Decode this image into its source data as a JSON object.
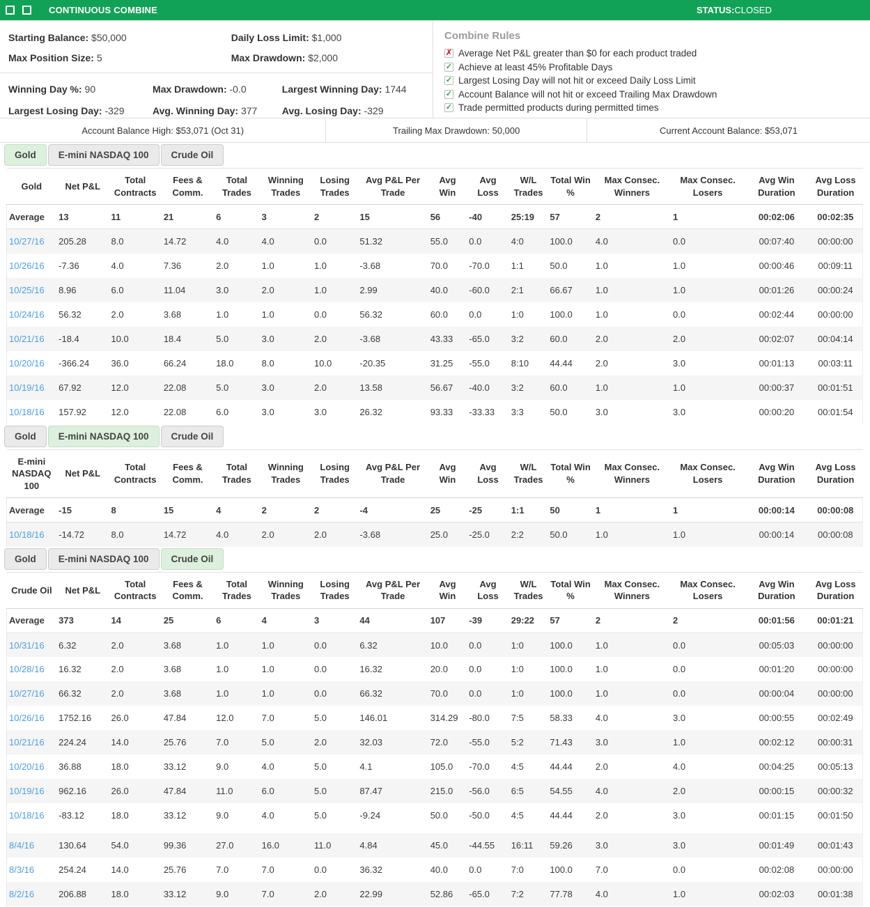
{
  "header": {
    "title": "CONTINUOUS COMBINE",
    "status_label": "STATUS:",
    "status_value": "CLOSED"
  },
  "colors": {
    "brand_green": "#12A257",
    "active_tab_green": "#ddf0dd",
    "date_link_blue": "#4a9fe6",
    "rule_pass_green": "#2f9e44",
    "rule_fail_red": "#d22f2f",
    "row_stripe": "#f5f5f5"
  },
  "stats": {
    "top": [
      {
        "label": "Starting Balance:",
        "value": "$50,000"
      },
      {
        "label": "Daily Loss Limit:",
        "value": "$1,000"
      },
      {
        "label": "Max Position Size:",
        "value": "5"
      },
      {
        "label": "Max Drawdown:",
        "value": "$2,000"
      }
    ],
    "bottom": [
      {
        "label": "Winning Day %:",
        "value": "90"
      },
      {
        "label": "Max Drawdown:",
        "value": "-0.0"
      },
      {
        "label": "Largest Winning Day:",
        "value": "1744"
      },
      {
        "label": "Largest Losing Day:",
        "value": "-329"
      },
      {
        "label": "Avg. Winning Day:",
        "value": "377"
      },
      {
        "label": "Avg. Losing Day:",
        "value": "-329"
      }
    ]
  },
  "rules": {
    "title": "Combine Rules",
    "items": [
      {
        "status": "fail",
        "text": "Average Net P&L greater than $0 for each product traded"
      },
      {
        "status": "pass",
        "text": "Achieve at least 45% Profitable Days"
      },
      {
        "status": "pass",
        "text": "Largest Losing Day will not hit or exceed Daily Loss Limit"
      },
      {
        "status": "pass",
        "text": "Account Balance will not hit or exceed Trailing Max Drawdown"
      },
      {
        "status": "pass",
        "text": "Trade permitted products during permitted times"
      }
    ]
  },
  "summary": [
    "Account Balance High: $53,071 (Oct 31)",
    "Trailing Max Drawdown: 50,000",
    "Current Account Balance: $53,071"
  ],
  "tabs": [
    "Gold",
    "E-mini NASDAQ 100",
    "Crude Oil"
  ],
  "columns": [
    "Net P&L",
    "Total Contracts",
    "Fees & Comm.",
    "Total Trades",
    "Winning Trades",
    "Losing Trades",
    "Avg P&L Per Trade",
    "Avg Win",
    "Avg Loss",
    "W/L Trades",
    "Total Win %",
    "Max Consec. Winners",
    "Max Consec. Losers",
    "Avg Win Duration",
    "Avg Loss Duration"
  ],
  "average_label": "Average",
  "tables": [
    {
      "first_col": "Gold",
      "active_tab": 0,
      "average": [
        "13",
        "11",
        "21",
        "6",
        "3",
        "2",
        "15",
        "56",
        "-40",
        "25:19",
        "57",
        "2",
        "1",
        "00:02:06",
        "00:02:35"
      ],
      "rows": [
        {
          "date": "10/27/16",
          "cells": [
            "205.28",
            "8.0",
            "14.72",
            "4.0",
            "4.0",
            "0.0",
            "51.32",
            "55.0",
            "0.0",
            "4:0",
            "100.0",
            "4.0",
            "0.0",
            "00:07:40",
            "00:00:00"
          ]
        },
        {
          "date": "10/26/16",
          "cells": [
            "-7.36",
            "4.0",
            "7.36",
            "2.0",
            "1.0",
            "1.0",
            "-3.68",
            "70.0",
            "-70.0",
            "1:1",
            "50.0",
            "1.0",
            "1.0",
            "00:00:46",
            "00:09:11"
          ]
        },
        {
          "date": "10/25/16",
          "cells": [
            "8.96",
            "6.0",
            "11.04",
            "3.0",
            "2.0",
            "1.0",
            "2.99",
            "40.0",
            "-60.0",
            "2:1",
            "66.67",
            "1.0",
            "1.0",
            "00:01:26",
            "00:00:24"
          ]
        },
        {
          "date": "10/24/16",
          "cells": [
            "56.32",
            "2.0",
            "3.68",
            "1.0",
            "1.0",
            "0.0",
            "56.32",
            "60.0",
            "0.0",
            "1:0",
            "100.0",
            "1.0",
            "0.0",
            "00:02:44",
            "00:00:00"
          ]
        },
        {
          "date": "10/21/16",
          "cells": [
            "-18.4",
            "10.0",
            "18.4",
            "5.0",
            "3.0",
            "2.0",
            "-3.68",
            "43.33",
            "-65.0",
            "3:2",
            "60.0",
            "2.0",
            "2.0",
            "00:02:07",
            "00:04:14"
          ]
        },
        {
          "date": "10/20/16",
          "cells": [
            "-366.24",
            "36.0",
            "66.24",
            "18.0",
            "8.0",
            "10.0",
            "-20.35",
            "31.25",
            "-55.0",
            "8:10",
            "44.44",
            "2.0",
            "3.0",
            "00:01:13",
            "00:03:11"
          ]
        },
        {
          "date": "10/19/16",
          "cells": [
            "67.92",
            "12.0",
            "22.08",
            "5.0",
            "3.0",
            "2.0",
            "13.58",
            "56.67",
            "-40.0",
            "3:2",
            "60.0",
            "1.0",
            "1.0",
            "00:00:37",
            "00:01:51"
          ]
        },
        {
          "date": "10/18/16",
          "cells": [
            "157.92",
            "12.0",
            "22.08",
            "6.0",
            "3.0",
            "3.0",
            "26.32",
            "93.33",
            "-33.33",
            "3:3",
            "50.0",
            "3.0",
            "3.0",
            "00:00:20",
            "00:01:54"
          ]
        }
      ]
    },
    {
      "first_col": "E-mini NASDAQ 100",
      "active_tab": 1,
      "average": [
        "-15",
        "8",
        "15",
        "4",
        "2",
        "2",
        "-4",
        "25",
        "-25",
        "1:1",
        "50",
        "1",
        "1",
        "00:00:14",
        "00:00:08"
      ],
      "rows": [
        {
          "date": "10/18/16",
          "cells": [
            "-14.72",
            "8.0",
            "14.72",
            "4.0",
            "2.0",
            "2.0",
            "-3.68",
            "25.0",
            "-25.0",
            "2:2",
            "50.0",
            "1.0",
            "1.0",
            "00:00:14",
            "00:00:08"
          ]
        }
      ]
    },
    {
      "first_col": "Crude Oil",
      "active_tab": 2,
      "average": [
        "373",
        "14",
        "25",
        "6",
        "4",
        "3",
        "44",
        "107",
        "-39",
        "29:22",
        "57",
        "2",
        "2",
        "00:01:56",
        "00:01:21"
      ],
      "rows": [
        {
          "date": "10/31/16",
          "cells": [
            "6.32",
            "2.0",
            "3.68",
            "1.0",
            "1.0",
            "0.0",
            "6.32",
            "10.0",
            "0.0",
            "1:0",
            "100.0",
            "1.0",
            "0.0",
            "00:05:03",
            "00:00:00"
          ]
        },
        {
          "date": "10/28/16",
          "cells": [
            "16.32",
            "2.0",
            "3.68",
            "1.0",
            "1.0",
            "0.0",
            "16.32",
            "20.0",
            "0.0",
            "1:0",
            "100.0",
            "1.0",
            "0.0",
            "00:01:20",
            "00:00:00"
          ]
        },
        {
          "date": "10/27/16",
          "cells": [
            "66.32",
            "2.0",
            "3.68",
            "1.0",
            "1.0",
            "0.0",
            "66.32",
            "70.0",
            "0.0",
            "1:0",
            "100.0",
            "1.0",
            "0.0",
            "00:00:04",
            "00:00:00"
          ]
        },
        {
          "date": "10/26/16",
          "cells": [
            "1752.16",
            "26.0",
            "47.84",
            "12.0",
            "7.0",
            "5.0",
            "146.01",
            "314.29",
            "-80.0",
            "7:5",
            "58.33",
            "4.0",
            "3.0",
            "00:00:55",
            "00:02:49"
          ]
        },
        {
          "date": "10/21/16",
          "cells": [
            "224.24",
            "14.0",
            "25.76",
            "7.0",
            "5.0",
            "2.0",
            "32.03",
            "72.0",
            "-55.0",
            "5:2",
            "71.43",
            "3.0",
            "1.0",
            "00:02:12",
            "00:00:31"
          ]
        },
        {
          "date": "10/20/16",
          "cells": [
            "36.88",
            "18.0",
            "33.12",
            "9.0",
            "4.0",
            "5.0",
            "4.1",
            "105.0",
            "-70.0",
            "4:5",
            "44.44",
            "2.0",
            "4.0",
            "00:04:25",
            "00:05:13"
          ]
        },
        {
          "date": "10/19/16",
          "cells": [
            "962.16",
            "26.0",
            "47.84",
            "11.0",
            "6.0",
            "5.0",
            "87.47",
            "215.0",
            "-56.0",
            "6:5",
            "54.55",
            "4.0",
            "2.0",
            "00:00:15",
            "00:00:32"
          ]
        },
        {
          "date": "10/18/16",
          "cells": [
            "-83.12",
            "18.0",
            "33.12",
            "9.0",
            "4.0",
            "5.0",
            "-9.24",
            "50.0",
            "-50.0",
            "4:5",
            "44.44",
            "2.0",
            "3.0",
            "00:01:15",
            "00:01:50"
          ]
        },
        {
          "date": "8/4/16",
          "gap_before": true,
          "cells": [
            "130.64",
            "54.0",
            "99.36",
            "27.0",
            "16.0",
            "11.0",
            "4.84",
            "45.0",
            "-44.55",
            "16:11",
            "59.26",
            "3.0",
            "3.0",
            "00:01:49",
            "00:01:43"
          ]
        },
        {
          "date": "8/3/16",
          "cells": [
            "254.24",
            "14.0",
            "25.76",
            "7.0",
            "7.0",
            "0.0",
            "36.32",
            "40.0",
            "0.0",
            "7:0",
            "100.0",
            "7.0",
            "0.0",
            "00:02:08",
            "00:00:00"
          ]
        },
        {
          "date": "8/2/16",
          "cells": [
            "206.88",
            "18.0",
            "33.12",
            "9.0",
            "7.0",
            "2.0",
            "22.99",
            "52.86",
            "-65.0",
            "7:2",
            "77.78",
            "4.0",
            "1.0",
            "00:02:03",
            "00:01:38"
          ]
        }
      ]
    }
  ]
}
